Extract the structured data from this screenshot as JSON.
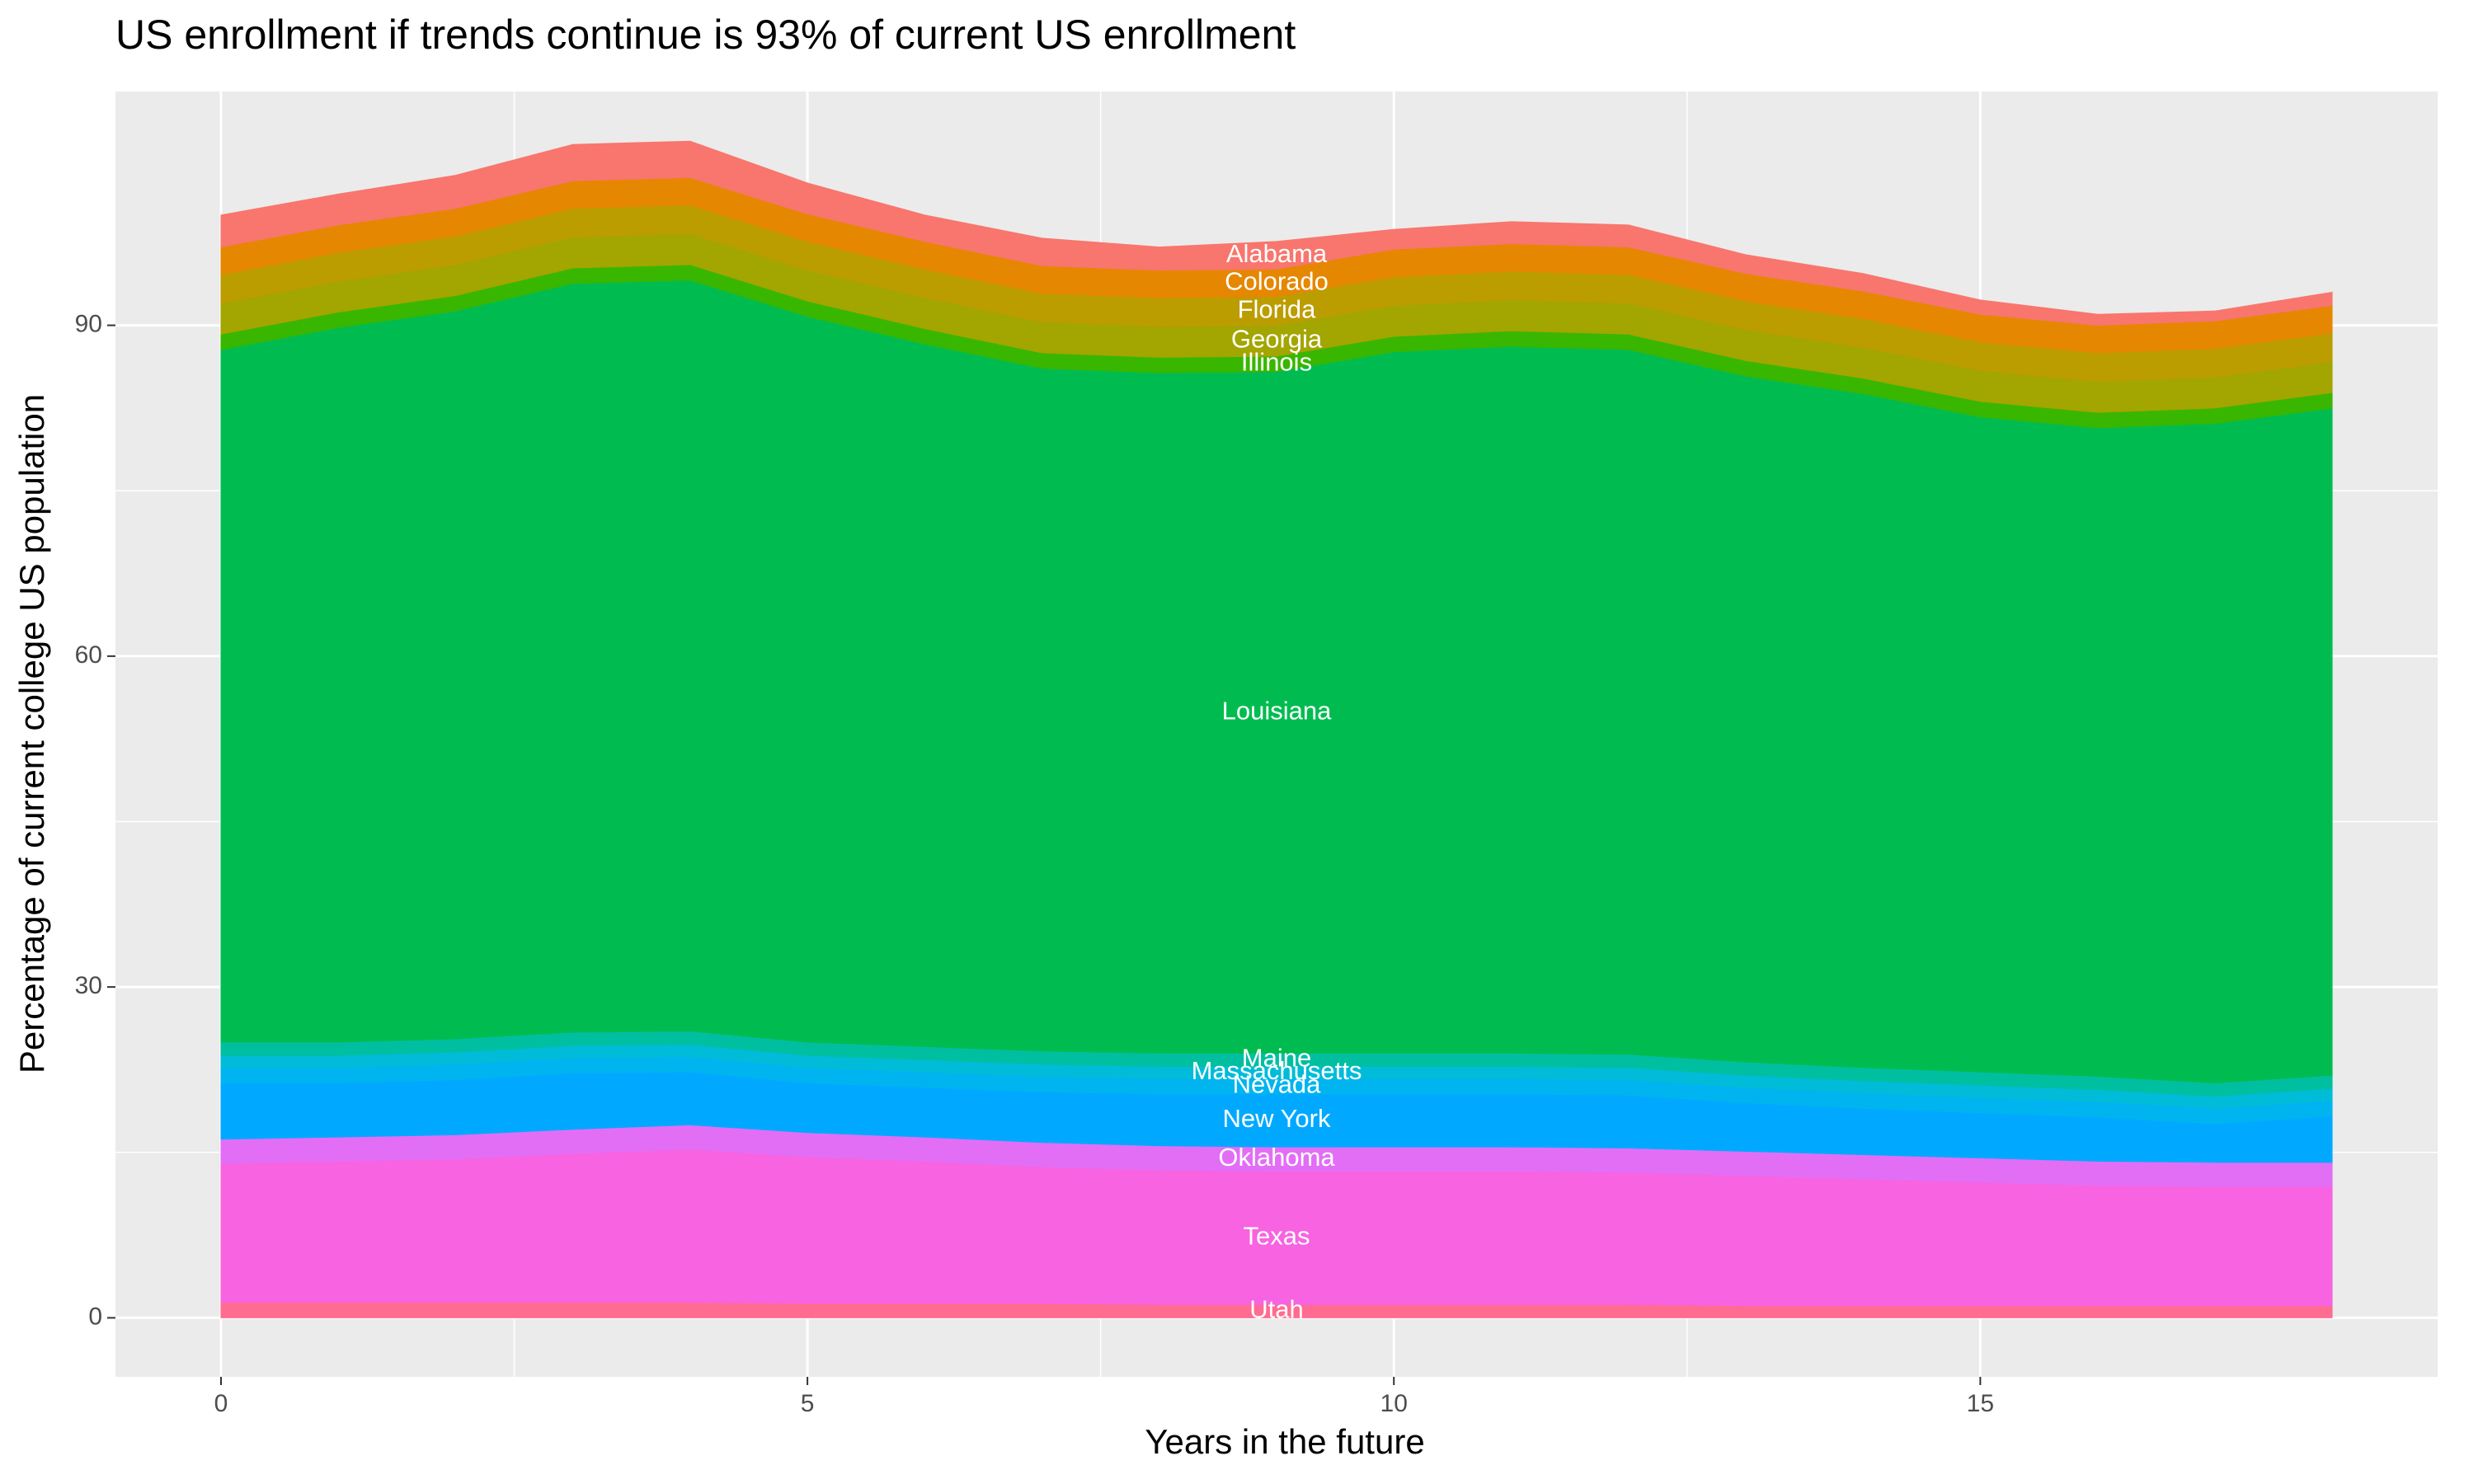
{
  "chart_data": {
    "type": "stacked_area",
    "title": "US enrollment if trends continue is 93% of current US enrollment",
    "x_label": "Years in the future",
    "y_label": "Percentage of current college US population",
    "x": [
      0,
      1,
      2,
      3,
      4,
      5,
      6,
      7,
      8,
      9,
      10,
      11,
      12,
      13,
      14,
      15,
      16,
      17,
      18
    ],
    "xlim": [
      -0.9,
      18.9
    ],
    "xticks": [
      0,
      5,
      10,
      15
    ],
    "ylim": [
      -5.35,
      111.2
    ],
    "yticks": [
      0,
      30,
      60,
      90
    ],
    "grid": true,
    "series": [
      {
        "name": "Utah",
        "color": "#FF6C91",
        "values": [
          1.4,
          1.4,
          1.4,
          1.4,
          1.4,
          1.3,
          1.3,
          1.3,
          1.2,
          1.2,
          1.2,
          1.2,
          1.2,
          1.1,
          1.1,
          1.1,
          1.1,
          1.1,
          1.1
        ]
      },
      {
        "name": "Texas",
        "color": "#F763E0",
        "values": [
          12.6,
          12.8,
          13,
          13.5,
          13.9,
          13.3,
          12.9,
          12.4,
          12.2,
          12.1,
          12.1,
          12.1,
          12,
          11.8,
          11.5,
          11.2,
          10.9,
          10.8,
          10.8
        ]
      },
      {
        "name": "Oklahoma",
        "color": "#E36EF6",
        "values": [
          2.2,
          2.2,
          2.2,
          2.2,
          2.2,
          2.2,
          2.2,
          2.2,
          2.2,
          2.2,
          2.2,
          2.2,
          2.2,
          2.2,
          2.2,
          2.2,
          2.2,
          2.2,
          2.2
        ]
      },
      {
        "name": "New York",
        "color": "#00A9FF",
        "values": [
          5.1,
          4.9,
          5,
          5.1,
          4.8,
          4.5,
          4.5,
          4.6,
          4.7,
          4.8,
          4.8,
          4.8,
          4.8,
          4.4,
          4.2,
          4.1,
          4.0,
          3.5,
          4.2
        ]
      },
      {
        "name": "Nevada",
        "color": "#00B4F0",
        "values": [
          1.4,
          1.4,
          1.4,
          1.4,
          1.4,
          1.4,
          1.4,
          1.4,
          1.4,
          1.4,
          1.4,
          1.4,
          1.4,
          1.4,
          1.4,
          1.4,
          1.4,
          1.4,
          1.4
        ]
      },
      {
        "name": "Massachusetts",
        "color": "#00BCD8",
        "values": [
          1.1,
          1.1,
          1.1,
          1.1,
          1.1,
          1.1,
          1.1,
          1.1,
          1.1,
          1.1,
          1.1,
          1.1,
          1.1,
          1.1,
          1.1,
          1.1,
          1.1,
          1.1,
          1.1
        ]
      },
      {
        "name": "Maine",
        "color": "#00BFA0",
        "values": [
          1.2,
          1.2,
          1.2,
          1.2,
          1.2,
          1.2,
          1.2,
          1.2,
          1.2,
          1.2,
          1.2,
          1.2,
          1.2,
          1.2,
          1.2,
          1.2,
          1.2,
          1.2,
          1.2
        ]
      },
      {
        "name": "Louisiana",
        "color": "#00BC50",
        "values": [
          62.8,
          64.8,
          66,
          67.9,
          68.1,
          65.8,
          63.7,
          61.9,
          61.7,
          61.8,
          63.6,
          64.1,
          63.9,
          62.2,
          61.1,
          59.4,
          58.8,
          59.8,
          60.5
        ]
      },
      {
        "name": "Illinois",
        "color": "#39B600",
        "values": [
          1.4,
          1.4,
          1.4,
          1.4,
          1.4,
          1.4,
          1.4,
          1.4,
          1.4,
          1.4,
          1.4,
          1.4,
          1.4,
          1.4,
          1.4,
          1.4,
          1.4,
          1.4,
          1.4
        ]
      },
      {
        "name": "Georgia",
        "color": "#A3A500",
        "values": [
          2.8,
          2.8,
          2.8,
          2.8,
          2.8,
          2.8,
          2.8,
          2.8,
          2.8,
          2.8,
          2.8,
          2.8,
          2.8,
          2.8,
          2.8,
          2.8,
          2.8,
          2.8,
          2.8
        ]
      },
      {
        "name": "Florida",
        "color": "#BB9D00",
        "values": [
          2.6,
          2.6,
          2.6,
          2.6,
          2.6,
          2.6,
          2.6,
          2.6,
          2.6,
          2.6,
          2.6,
          2.6,
          2.6,
          2.6,
          2.6,
          2.6,
          2.6,
          2.6,
          2.6
        ]
      },
      {
        "name": "Colorado",
        "color": "#E58700",
        "values": [
          2.5,
          2.5,
          2.5,
          2.5,
          2.5,
          2.5,
          2.5,
          2.5,
          2.5,
          2.5,
          2.5,
          2.5,
          2.5,
          2.5,
          2.5,
          2.5,
          2.5,
          2.5,
          2.5
        ]
      },
      {
        "name": "Alabama",
        "color": "#F8766D",
        "values": [
          2.9,
          2.8,
          3.0,
          3.3,
          3.3,
          2.8,
          2.4,
          2.5,
          2.1,
          2.5,
          1.8,
          2.0,
          2.0,
          1.7,
          1.6,
          1.3,
          1.0,
          0.9,
          1.2
        ]
      }
    ]
  }
}
